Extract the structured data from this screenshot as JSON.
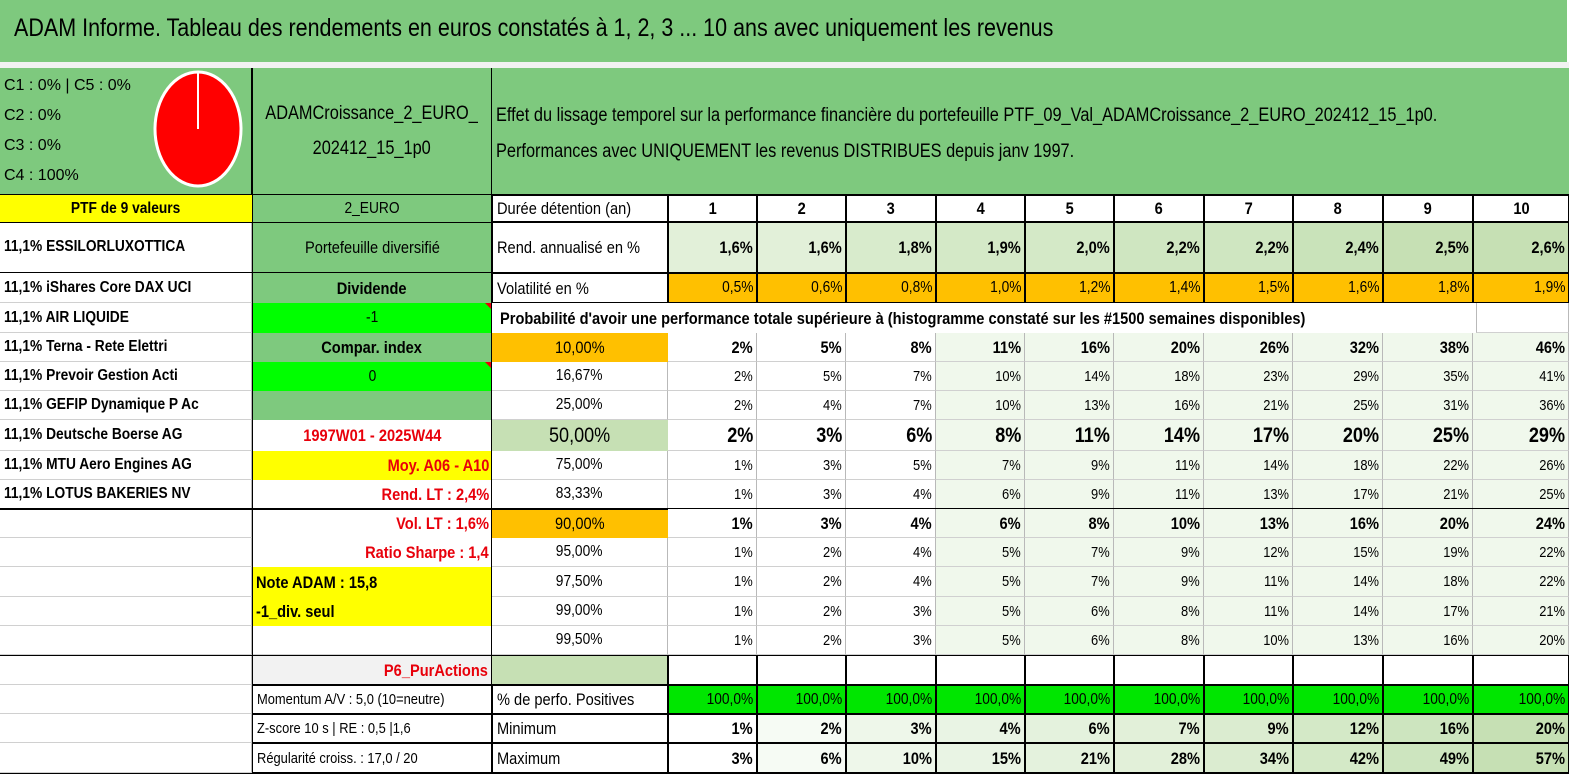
{
  "title": "ADAM Informe. Tableau des rendements en euros constatés à 1, 2, 3 ... 10 ans avec uniquement les revenus",
  "allocation": {
    "lines": [
      "C1 : 0% | C5 : 0%",
      "C2 : 0%",
      "C3 : 0%",
      "C4 : 100%"
    ]
  },
  "pie": {
    "slices": [
      {
        "name": "C4",
        "percent": 100,
        "color": "#ff0000"
      }
    ]
  },
  "portfolio": {
    "name_line1": "ADAMCroissance_2_EURO_",
    "name_line2": "202412_15_1p0",
    "description_line1": "Effet du lissage temporel sur la performance financière du portefeuille PTF_09_Val_ADAMCroissance_2_EURO_202412_15_1p0.",
    "description_line2": "Performances avec UNIQUEMENT les revenus DISTRIBUES depuis janv 1997."
  },
  "left_col": {
    "header": "PTF de 9 valeurs",
    "holdings": [
      "11,1% ESSILORLUXOTTICA",
      "11,1% iShares Core DAX UCI",
      "11,1% AIR LIQUIDE",
      "11,1% Terna - Rete Elettri",
      "11,1% Prevoir Gestion Acti",
      "11,1% GEFIP Dynamique P Ac",
      "11,1% Deutsche Boerse AG",
      "11,1% MTU Aero Engines AG",
      "11,1% LOTUS BAKERIES NV"
    ]
  },
  "info_col": {
    "currency": "2_EURO",
    "type": "Portefeuille diversifié",
    "dividend_label": "Dividende",
    "dividend_value": "-1",
    "compar_label": "Compar. index",
    "compar_value": "0",
    "period": "1997W01 - 2025W44",
    "avg": "Moy. A06 - A10",
    "rend_lt": "Rend. LT : 2,4%",
    "vol_lt": "Vol. LT : 1,6%",
    "sharpe": "Ratio Sharpe : 1,4",
    "note": "Note ADAM : 15,8",
    "div_seul": "-1_div. seul",
    "p6": "P6_PurActions",
    "momentum": "Momentum A/V : 5,0 (10=neutre)",
    "zscore": "Z-score 10 s | RE : 0,5 |1,6",
    "regularite": "Régularité croiss. : 17,0 / 20"
  },
  "table": {
    "duration_label": "Durée détention (an)",
    "years": [
      "1",
      "2",
      "3",
      "4",
      "5",
      "6",
      "7",
      "8",
      "9",
      "10"
    ],
    "rend_label": "Rend. annualisé en %",
    "rend": [
      "1,6%",
      "1,6%",
      "1,8%",
      "1,9%",
      "2,0%",
      "2,2%",
      "2,2%",
      "2,4%",
      "2,5%",
      "2,6%"
    ],
    "vol_label": "Volatilité en %",
    "vol": [
      "0,5%",
      "0,6%",
      "0,8%",
      "1,0%",
      "1,2%",
      "1,4%",
      "1,5%",
      "1,6%",
      "1,8%",
      "1,9%"
    ],
    "prob_title": "Probabilité d'avoir une performance totale supérieure à (histogramme constaté sur les #1500 semaines disponibles)",
    "prob_rows": [
      {
        "level": "10,00%",
        "values": [
          "2%",
          "5%",
          "8%",
          "11%",
          "16%",
          "20%",
          "26%",
          "32%",
          "38%",
          "46%"
        ]
      },
      {
        "level": "16,67%",
        "values": [
          "2%",
          "5%",
          "7%",
          "10%",
          "14%",
          "18%",
          "23%",
          "29%",
          "35%",
          "41%"
        ]
      },
      {
        "level": "25,00%",
        "values": [
          "2%",
          "4%",
          "7%",
          "10%",
          "13%",
          "16%",
          "21%",
          "25%",
          "31%",
          "36%"
        ]
      },
      {
        "level": "50,00%",
        "values": [
          "2%",
          "3%",
          "6%",
          "8%",
          "11%",
          "14%",
          "17%",
          "20%",
          "25%",
          "29%"
        ]
      },
      {
        "level": "75,00%",
        "values": [
          "1%",
          "3%",
          "5%",
          "7%",
          "9%",
          "11%",
          "14%",
          "18%",
          "22%",
          "26%"
        ]
      },
      {
        "level": "83,33%",
        "values": [
          "1%",
          "3%",
          "4%",
          "6%",
          "9%",
          "11%",
          "13%",
          "17%",
          "21%",
          "25%"
        ]
      },
      {
        "level": "90,00%",
        "values": [
          "1%",
          "3%",
          "4%",
          "6%",
          "8%",
          "10%",
          "13%",
          "16%",
          "20%",
          "24%"
        ]
      },
      {
        "level": "95,00%",
        "values": [
          "1%",
          "2%",
          "4%",
          "5%",
          "7%",
          "9%",
          "12%",
          "15%",
          "19%",
          "22%"
        ]
      },
      {
        "level": "97,50%",
        "values": [
          "1%",
          "2%",
          "4%",
          "5%",
          "7%",
          "9%",
          "11%",
          "14%",
          "18%",
          "22%"
        ]
      },
      {
        "level": "99,00%",
        "values": [
          "1%",
          "2%",
          "3%",
          "5%",
          "6%",
          "8%",
          "11%",
          "14%",
          "17%",
          "21%"
        ]
      },
      {
        "level": "99,50%",
        "values": [
          "1%",
          "2%",
          "3%",
          "5%",
          "6%",
          "8%",
          "10%",
          "13%",
          "16%",
          "20%"
        ]
      }
    ],
    "pos_label": "% de perfo. Positives",
    "pos": [
      "100,0%",
      "100,0%",
      "100,0%",
      "100,0%",
      "100,0%",
      "100,0%",
      "100,0%",
      "100,0%",
      "100,0%",
      "100,0%"
    ],
    "min_label": "Minimum",
    "min": [
      "1%",
      "2%",
      "3%",
      "4%",
      "6%",
      "7%",
      "9%",
      "12%",
      "16%",
      "20%"
    ],
    "max_label": "Maximum",
    "max": [
      "3%",
      "6%",
      "10%",
      "15%",
      "21%",
      "28%",
      "34%",
      "42%",
      "49%",
      "57%"
    ]
  },
  "colors": {
    "banner": "#7ec97e",
    "yellow": "#ffff00",
    "bright_green": "#00ff00",
    "orange": "#ffc000",
    "red_text": "#e8000b"
  }
}
